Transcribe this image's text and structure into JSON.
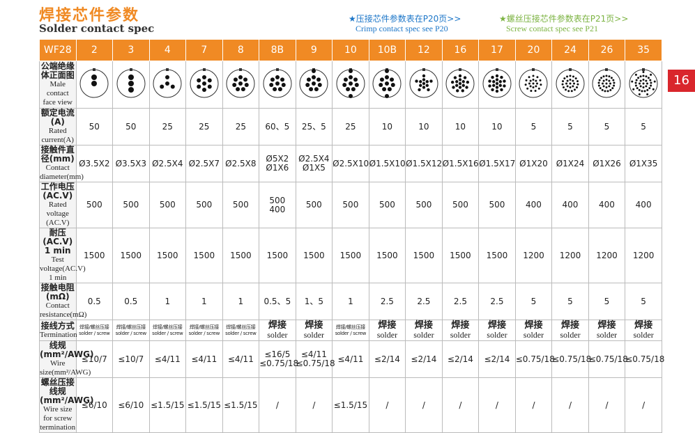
{
  "header": {
    "title_cn": "焊接芯件参数",
    "title_en": "Solder contact spec",
    "crimp_note_cn": "★压接芯件参数表在P20页>>",
    "crimp_note_en": "Crimp contact spec see P20",
    "screw_note_cn": "★螺丝压接芯件参数表在P21页>>",
    "screw_note_en": "Screw contact spec see P21",
    "page_number": "16"
  },
  "table": {
    "model": "WF28",
    "columns": [
      "2",
      "3",
      "4",
      "7",
      "8",
      "8B",
      "9",
      "10",
      "10B",
      "12",
      "16",
      "17",
      "20",
      "24",
      "26",
      "35"
    ],
    "face_row": {
      "label_cn": "公端绝缘体正面图",
      "label_en": "Male contact face view"
    },
    "rows": [
      {
        "label_cn": "额定电流(A)",
        "label_en": "Rated current(A)",
        "cells": [
          [
            "50"
          ],
          [
            "50"
          ],
          [
            "25"
          ],
          [
            "25"
          ],
          [
            "25"
          ],
          [
            "60、5"
          ],
          [
            "25、5"
          ],
          [
            "25"
          ],
          [
            "10"
          ],
          [
            "10"
          ],
          [
            "10"
          ],
          [
            "10"
          ],
          [
            "5"
          ],
          [
            "5"
          ],
          [
            "5"
          ],
          [
            "5"
          ]
        ]
      },
      {
        "label_cn": "接触件直径(mm)",
        "label_en": "Contact diameter(mm)",
        "cells": [
          [
            "Ø3.5X2"
          ],
          [
            "Ø3.5X3"
          ],
          [
            "Ø2.5X4"
          ],
          [
            "Ø2.5X7"
          ],
          [
            "Ø2.5X8"
          ],
          [
            "Ø5X2",
            "Ø1X6"
          ],
          [
            "Ø2.5X4",
            "Ø1X5"
          ],
          [
            "Ø2.5X10"
          ],
          [
            "Ø1.5X10"
          ],
          [
            "Ø1.5X12"
          ],
          [
            "Ø1.5X16"
          ],
          [
            "Ø1.5X17"
          ],
          [
            "Ø1X20"
          ],
          [
            "Ø1X24"
          ],
          [
            "Ø1X26"
          ],
          [
            "Ø1X35"
          ]
        ]
      },
      {
        "label_cn": "工作电压(AC.V)",
        "label_en": "Rated voltage (AC.V)",
        "cells": [
          [
            "500"
          ],
          [
            "500"
          ],
          [
            "500"
          ],
          [
            "500"
          ],
          [
            "500"
          ],
          [
            "500",
            "400"
          ],
          [
            "500"
          ],
          [
            "500"
          ],
          [
            "500"
          ],
          [
            "500"
          ],
          [
            "500"
          ],
          [
            "500"
          ],
          [
            "400"
          ],
          [
            "400"
          ],
          [
            "400"
          ],
          [
            "400"
          ]
        ]
      },
      {
        "label_cn": "耐压(AC.V) 1 min",
        "label_en": "Test voltage(AC.V) 1 min",
        "cells": [
          [
            "1500"
          ],
          [
            "1500"
          ],
          [
            "1500"
          ],
          [
            "1500"
          ],
          [
            "1500"
          ],
          [
            "1500"
          ],
          [
            "1500"
          ],
          [
            "1500"
          ],
          [
            "1500"
          ],
          [
            "1500"
          ],
          [
            "1500"
          ],
          [
            "1500"
          ],
          [
            "1200"
          ],
          [
            "1200"
          ],
          [
            "1200"
          ],
          [
            "1200"
          ]
        ]
      },
      {
        "label_cn": "接触电阻(mΩ)",
        "label_en": "Contact resistance(mΩ)",
        "cells": [
          [
            "0.5"
          ],
          [
            "0.5"
          ],
          [
            "1"
          ],
          [
            "1"
          ],
          [
            "1"
          ],
          [
            "0.5、5"
          ],
          [
            "1、5"
          ],
          [
            "1"
          ],
          [
            "2.5"
          ],
          [
            "2.5"
          ],
          [
            "2.5"
          ],
          [
            "2.5"
          ],
          [
            "5"
          ],
          [
            "5"
          ],
          [
            "5"
          ],
          [
            "5"
          ]
        ]
      },
      {
        "label_cn": "接线方式",
        "label_en": "Termination",
        "cells": [
          [
            "焊接/螺丝压接",
            "solder / screw"
          ],
          [
            "焊接/螺丝压接",
            "solder / screw"
          ],
          [
            "焊接/螺丝压接",
            "solder / screw"
          ],
          [
            "焊接/螺丝压接",
            "solder / screw"
          ],
          [
            "焊接/螺丝压接",
            "solder / screw"
          ],
          [
            "焊接",
            "solder"
          ],
          [
            "焊接",
            "solder"
          ],
          [
            "焊接/螺丝压接",
            "solder / screw"
          ],
          [
            "焊接",
            "solder"
          ],
          [
            "焊接",
            "solder"
          ],
          [
            "焊接",
            "solder"
          ],
          [
            "焊接",
            "solder"
          ],
          [
            "焊接",
            "solder"
          ],
          [
            "焊接",
            "solder"
          ],
          [
            "焊接",
            "solder"
          ],
          [
            "焊接",
            "solder"
          ]
        ]
      },
      {
        "label_cn": "线规(mm²/AWG)",
        "label_en": "Wire size(mm²/AWG)",
        "cells": [
          [
            "≤10/7"
          ],
          [
            "≤10/7"
          ],
          [
            "≤4/11"
          ],
          [
            "≤4/11"
          ],
          [
            "≤4/11"
          ],
          [
            "≤16/5",
            "≤0.75/18"
          ],
          [
            "≤4/11",
            "≤0.75/18"
          ],
          [
            "≤4/11"
          ],
          [
            "≤2/14"
          ],
          [
            "≤2/14"
          ],
          [
            "≤2/14"
          ],
          [
            "≤2/14"
          ],
          [
            "≤0.75/18"
          ],
          [
            "≤0.75/18"
          ],
          [
            "≤0.75/18"
          ],
          [
            "≤0.75/18"
          ]
        ]
      },
      {
        "label_cn": "螺丝压接线规(mm²/AWG)",
        "label_en": "Wire size for screw termination",
        "cells": [
          [
            "≤6/10"
          ],
          [
            "≤6/10"
          ],
          [
            "≤1.5/15"
          ],
          [
            "≤1.5/15"
          ],
          [
            "≤1.5/15"
          ],
          [
            "/"
          ],
          [
            "/"
          ],
          [
            "≤1.5/15"
          ],
          [
            "/"
          ],
          [
            "/"
          ],
          [
            "/"
          ],
          [
            "/"
          ],
          [
            "/"
          ],
          [
            "/"
          ],
          [
            "/"
          ],
          [
            "/"
          ]
        ]
      }
    ]
  }
}
